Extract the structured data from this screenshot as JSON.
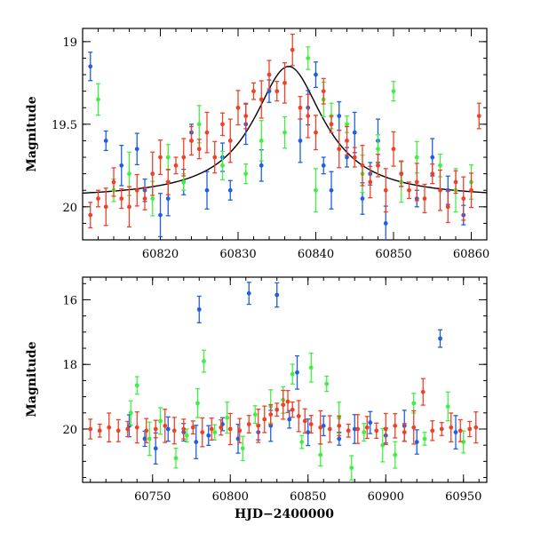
{
  "colors": {
    "blue": "#1f5fe0",
    "green": "#40f040",
    "red": "#f04028",
    "model": "#000000"
  },
  "chart_data": [
    {
      "type": "scatter",
      "title": "",
      "xlabel": "",
      "ylabel": "Magnitude",
      "xlim": [
        60810,
        60862
      ],
      "ylim": [
        20.2,
        18.92
      ],
      "y_inverted": true,
      "xticks": [
        60820,
        60830,
        60840,
        60850,
        60860
      ],
      "xtick_labels": [
        "60820",
        "60830",
        "60840",
        "60850",
        "60860"
      ],
      "yticks": [
        19,
        19.5,
        20
      ],
      "ytick_labels": [
        "19",
        "19.5",
        "20"
      ],
      "model_curve": {
        "peak_x": 60836.5,
        "peak_mag": 19.15,
        "baseline_mag": 19.95,
        "width": 5.5
      },
      "series": [
        {
          "name": "blue",
          "x": [
            60811,
            60813,
            60815,
            60817,
            60818,
            60820,
            60821,
            60823,
            60824,
            60826,
            60828,
            60829,
            60831,
            60833,
            60834,
            60838,
            60839,
            60840,
            60841,
            60842,
            60843,
            60844,
            60845,
            60846,
            60847,
            60848,
            60849,
            60851,
            60853,
            60855,
            60857,
            60859
          ],
          "y": [
            19.15,
            19.6,
            19.75,
            19.65,
            19.9,
            20.05,
            19.95,
            19.85,
            19.55,
            19.9,
            19.7,
            19.9,
            19.5,
            19.75,
            19.3,
            19.6,
            19.4,
            19.2,
            19.75,
            19.9,
            19.45,
            19.7,
            19.55,
            19.95,
            19.8,
            19.6,
            20.1,
            19.8,
            19.95,
            19.7,
            19.9,
            20.05
          ]
        },
        {
          "name": "green",
          "x": [
            60812,
            60814,
            60816,
            60819,
            60821,
            60823,
            60825,
            60828,
            60831,
            60833,
            60836,
            60839,
            60840,
            60841,
            60842,
            60844,
            60846,
            60848,
            60850,
            60851,
            60853,
            60856,
            60858,
            60860
          ],
          "y": [
            19.35,
            19.9,
            19.8,
            19.95,
            19.7,
            19.85,
            19.5,
            19.75,
            19.8,
            19.6,
            19.55,
            19.1,
            19.9,
            19.35,
            19.45,
            19.5,
            19.8,
            19.65,
            19.3,
            19.85,
            19.7,
            19.75,
            19.9,
            19.85
          ]
        },
        {
          "name": "red",
          "x": [
            60811,
            60812,
            60813,
            60814,
            60815,
            60816,
            60817,
            60818,
            60819,
            60820,
            60821,
            60822,
            60823,
            60824,
            60825,
            60826,
            60827,
            60828,
            60829,
            60830,
            60831,
            60832,
            60833,
            60834,
            60835,
            60836,
            60837,
            60838,
            60839,
            60840,
            60841,
            60842,
            60843,
            60844,
            60845,
            60846,
            60847,
            60848,
            60849,
            60850,
            60851,
            60852,
            60853,
            60854,
            60855,
            60856,
            60857,
            60858,
            60859,
            60860,
            60861
          ],
          "y": [
            20.05,
            19.95,
            20.0,
            19.85,
            19.95,
            20.0,
            19.9,
            19.95,
            19.8,
            19.7,
            19.85,
            19.75,
            19.7,
            19.6,
            19.65,
            19.55,
            19.7,
            19.5,
            19.6,
            19.4,
            19.45,
            19.3,
            19.35,
            19.2,
            19.3,
            19.25,
            19.05,
            19.4,
            19.45,
            19.55,
            19.3,
            19.5,
            19.65,
            19.6,
            19.7,
            19.75,
            19.85,
            19.75,
            19.9,
            19.65,
            19.8,
            19.9,
            19.85,
            19.95,
            19.8,
            19.9,
            20.0,
            19.85,
            19.95,
            19.9,
            19.45
          ]
        }
      ]
    },
    {
      "type": "scatter",
      "title": "",
      "xlabel": "HJD−2400000",
      "ylabel": "Magnitude",
      "xlim": [
        60705,
        60965
      ],
      "ylim": [
        21.65,
        15.3
      ],
      "y_inverted": true,
      "xticks": [
        60750,
        60800,
        60850,
        60900,
        60950
      ],
      "xtick_labels": [
        "60750",
        "60800",
        "60850",
        "60900",
        "60950"
      ],
      "yticks": [
        16,
        18,
        20
      ],
      "ytick_labels": [
        "16",
        "18",
        "20"
      ],
      "series": [
        {
          "name": "blue",
          "x": [
            60735,
            60745,
            60752,
            60760,
            60770,
            60778,
            60780,
            60786,
            60795,
            60805,
            60812,
            60818,
            60826,
            60830,
            60838,
            60843,
            60850,
            60860,
            60870,
            60880,
            60890,
            60900,
            60912,
            60920,
            60935,
            60945
          ],
          "y": [
            19.9,
            20.3,
            20.6,
            20.0,
            20.1,
            20.4,
            16.3,
            20.2,
            19.85,
            20.3,
            15.8,
            20.1,
            19.9,
            15.85,
            19.7,
            18.25,
            20.1,
            19.9,
            20.3,
            20.0,
            19.8,
            20.2,
            19.9,
            20.4,
            17.2,
            20.1
          ]
        },
        {
          "name": "green",
          "x": [
            60736,
            60740,
            60748,
            60755,
            60765,
            60772,
            60779,
            60783,
            60790,
            60798,
            60808,
            60816,
            60826,
            60834,
            60840,
            60846,
            60852,
            60858,
            60862,
            60870,
            60878,
            60886,
            60898,
            60906,
            60918,
            60925,
            60940,
            60950
          ],
          "y": [
            19.5,
            18.65,
            20.3,
            19.75,
            20.9,
            20.2,
            19.2,
            17.9,
            20.1,
            19.65,
            20.6,
            19.55,
            19.3,
            19.1,
            18.3,
            20.4,
            18.1,
            20.8,
            18.6,
            19.65,
            21.2,
            20.1,
            20.5,
            20.8,
            19.2,
            20.3,
            19.3,
            20.4
          ]
        },
        {
          "name": "red",
          "x": [
            60710,
            60716,
            60722,
            60728,
            60734,
            60740,
            60746,
            60752,
            60758,
            60764,
            60770,
            60776,
            60782,
            60788,
            60794,
            60800,
            60806,
            60812,
            60818,
            60822,
            60826,
            60830,
            60834,
            60837,
            60840,
            60844,
            60848,
            60852,
            60858,
            60864,
            60870,
            60876,
            60882,
            60888,
            60894,
            60900,
            60906,
            60912,
            60918,
            60924,
            60930,
            60936,
            60942,
            60948,
            60954,
            60958
          ],
          "y": [
            20.0,
            20.05,
            19.95,
            20.05,
            20.0,
            19.95,
            20.05,
            20.0,
            19.9,
            20.05,
            20.0,
            19.95,
            20.1,
            20.0,
            19.95,
            20.0,
            20.05,
            19.85,
            19.9,
            19.7,
            19.55,
            19.4,
            19.25,
            19.15,
            19.4,
            19.6,
            19.75,
            19.85,
            19.95,
            20.0,
            19.9,
            20.05,
            20.0,
            19.95,
            20.05,
            20.0,
            19.9,
            20.1,
            19.95,
            18.85,
            20.05,
            20.0,
            19.95,
            20.05,
            20.0,
            19.95
          ]
        }
      ]
    }
  ]
}
